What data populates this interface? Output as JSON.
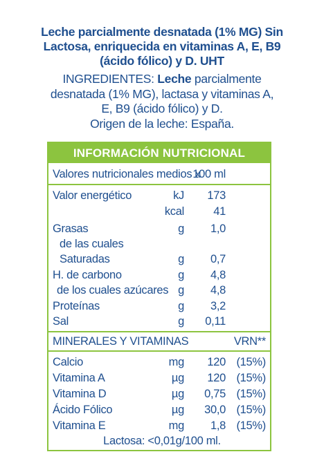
{
  "product": {
    "title_lines": [
      "Leche parcialmente desnatada (1% MG) Sin",
      "Lactosa, enriquecida en vitaminas A, E, B9",
      "(ácido fólico) y D. UHT"
    ]
  },
  "ingredients": {
    "label": "INGREDIENTES:",
    "highlight": "Leche",
    "line1_rest": "parcialmente",
    "line2": "desnatada (1% MG), lactasa y vitaminas A,",
    "line3": "E, B9 (ácido fólico) y D.",
    "origin": "Origen de la leche: España."
  },
  "table": {
    "title": "INFORMACIÓN NUTRICIONAL",
    "subheader": "Valores nutricionales medios x",
    "subheader_value": "100 ml",
    "rows": [
      {
        "name": "Valor energético",
        "unit": "kJ",
        "value": "173"
      },
      {
        "name": "",
        "unit": "kcal",
        "value": "41"
      },
      {
        "name": "Grasas",
        "unit": "g",
        "value": "1,0"
      },
      {
        "name": "de las cuales",
        "unit": "",
        "value": ""
      },
      {
        "name": "Saturadas",
        "unit": "g",
        "value": "0,7"
      },
      {
        "name": "H. de carbono",
        "unit": "g",
        "value": "4,8"
      },
      {
        "name": "de los cuales azúcares",
        "unit": "g",
        "value": "4,8"
      },
      {
        "name": "Proteínas",
        "unit": "g",
        "value": "3,2"
      },
      {
        "name": "Sal",
        "unit": "g",
        "value": "0,11"
      }
    ],
    "minerals_header": "MINERALES Y VITAMINAS",
    "vrn_header": "VRN**",
    "minerals": [
      {
        "name": "Calcio",
        "unit": "mg",
        "value": "120",
        "vrn": "(15%)"
      },
      {
        "name": "Vitamina A",
        "unit": "µg",
        "value": "120",
        "vrn": "(15%)"
      },
      {
        "name": "Vitamina D",
        "unit": "µg",
        "value": "0,75",
        "vrn": "(15%)"
      },
      {
        "name": "Ácido Fólico",
        "unit": "µg",
        "value": "30,0",
        "vrn": "(15%)"
      },
      {
        "name": "Vitamina E",
        "unit": "mg",
        "value": "1,8",
        "vrn": "(15%)"
      }
    ]
  },
  "footer": "Lactosa: <0,01g/100 ml.",
  "colors": {
    "text": "#1f4f8f",
    "accent_green": "#8cc43f",
    "background": "#ffffff"
  }
}
